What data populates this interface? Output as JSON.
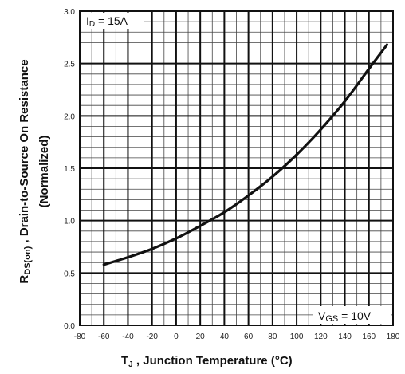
{
  "chart_data": {
    "type": "line",
    "xlabel_main": "T",
    "xlabel_sub": "J",
    "xlabel_rest": " , Junction Temperature (°C)",
    "ylabel_line1_main": "R",
    "ylabel_line1_sub": "DS(on)",
    "ylabel_line1_rest": " ,   Drain-to-Source On Resistance",
    "ylabel_line2": "(Normalized)",
    "xlim": [
      -80,
      180
    ],
    "ylim": [
      0.0,
      3.0
    ],
    "x_ticks": [
      -80,
      -60,
      -40,
      -20,
      0,
      20,
      40,
      60,
      80,
      100,
      120,
      140,
      160,
      180
    ],
    "x_tick_labels": [
      "-80",
      "-60",
      "-40",
      "-20",
      "0",
      "20",
      "40",
      "60",
      "80",
      "100",
      "120",
      "140",
      "160",
      "180"
    ],
    "y_ticks": [
      0.0,
      0.5,
      1.0,
      1.5,
      2.0,
      2.5,
      3.0
    ],
    "y_tick_labels": [
      "0.0",
      "0.5",
      "1.0",
      "1.5",
      "2.0",
      "2.5",
      "3.0"
    ],
    "grid": true,
    "annotations": {
      "id_main": "I",
      "id_sub": "D",
      "id_rest": " = 15A",
      "vgs_main": "V",
      "vgs_sub": "GS",
      "vgs_rest": " = 10V"
    },
    "series": [
      {
        "x": [
          -60,
          -40,
          -20,
          0,
          20,
          40,
          60,
          80,
          100,
          120,
          140,
          160,
          175
        ],
        "y": [
          0.58,
          0.65,
          0.73,
          0.83,
          0.95,
          1.08,
          1.24,
          1.42,
          1.63,
          1.87,
          2.14,
          2.45,
          2.68
        ]
      }
    ]
  }
}
